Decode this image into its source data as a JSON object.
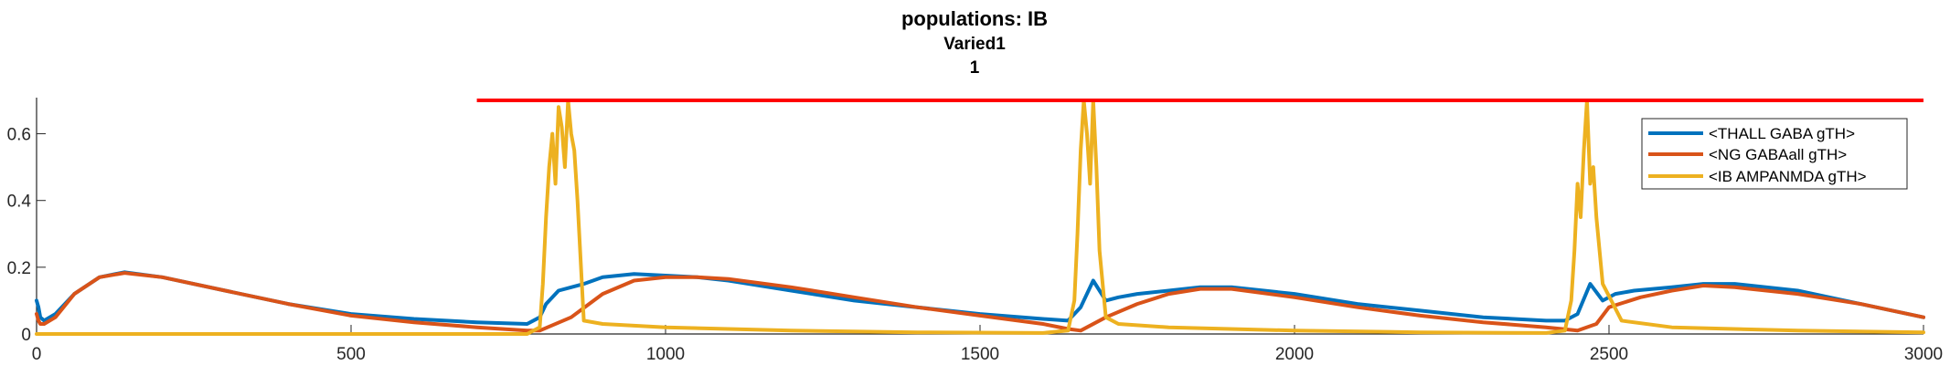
{
  "chart_data": {
    "type": "line",
    "title": "populations: IB",
    "subtitle": "Varied1",
    "subtitle2": "1",
    "xlim": [
      0,
      3000
    ],
    "ylim": [
      0,
      0.7
    ],
    "xticks": [
      0,
      500,
      1000,
      1500,
      2000,
      2500,
      3000
    ],
    "yticks": [
      0,
      0.2,
      0.4,
      0.6
    ],
    "ytick_labels": [
      "0",
      "0.2",
      "0.4",
      "0.6"
    ],
    "grid": false,
    "legend_position": "top-right",
    "threshold_line": {
      "y": 0.7,
      "x_start": 700,
      "x_end": 3000,
      "color": "#ff0000"
    },
    "series": [
      {
        "name": "<THALL GABA gTH>",
        "color": "#0072bd",
        "x": [
          0,
          3,
          6,
          12,
          30,
          60,
          100,
          140,
          200,
          300,
          400,
          500,
          600,
          700,
          780,
          800,
          810,
          830,
          850,
          870,
          900,
          950,
          1000,
          1050,
          1100,
          1200,
          1300,
          1400,
          1500,
          1600,
          1640,
          1660,
          1680,
          1700,
          1720,
          1750,
          1800,
          1850,
          1900,
          2000,
          2100,
          2200,
          2300,
          2400,
          2430,
          2450,
          2470,
          2490,
          2510,
          2540,
          2600,
          2650,
          2700,
          2800,
          2900,
          3000
        ],
        "values": [
          0.1,
          0.08,
          0.05,
          0.04,
          0.06,
          0.12,
          0.17,
          0.185,
          0.17,
          0.13,
          0.09,
          0.06,
          0.045,
          0.035,
          0.03,
          0.05,
          0.09,
          0.13,
          0.14,
          0.15,
          0.17,
          0.18,
          0.175,
          0.17,
          0.16,
          0.13,
          0.1,
          0.08,
          0.06,
          0.045,
          0.04,
          0.08,
          0.16,
          0.1,
          0.11,
          0.12,
          0.13,
          0.14,
          0.14,
          0.12,
          0.09,
          0.07,
          0.05,
          0.04,
          0.04,
          0.06,
          0.15,
          0.1,
          0.12,
          0.13,
          0.14,
          0.15,
          0.15,
          0.13,
          0.09,
          0.05
        ]
      },
      {
        "name": "<NG GABAall gTH>",
        "color": "#d95319",
        "x": [
          0,
          3,
          6,
          12,
          30,
          60,
          100,
          140,
          200,
          300,
          400,
          500,
          600,
          700,
          780,
          800,
          850,
          900,
          950,
          1000,
          1050,
          1100,
          1200,
          1300,
          1400,
          1500,
          1600,
          1640,
          1660,
          1700,
          1750,
          1800,
          1850,
          1900,
          2000,
          2100,
          2200,
          2300,
          2400,
          2450,
          2480,
          2500,
          2550,
          2600,
          2650,
          2700,
          2800,
          2900,
          3000
        ],
        "values": [
          0.06,
          0.04,
          0.03,
          0.03,
          0.05,
          0.12,
          0.17,
          0.183,
          0.17,
          0.13,
          0.09,
          0.055,
          0.035,
          0.02,
          0.01,
          0.01,
          0.05,
          0.12,
          0.16,
          0.17,
          0.17,
          0.165,
          0.14,
          0.11,
          0.08,
          0.055,
          0.03,
          0.015,
          0.01,
          0.05,
          0.09,
          0.12,
          0.135,
          0.135,
          0.11,
          0.08,
          0.055,
          0.035,
          0.02,
          0.01,
          0.03,
          0.08,
          0.11,
          0.13,
          0.145,
          0.14,
          0.12,
          0.09,
          0.05
        ]
      },
      {
        "name": "<IB AMPANMDA gTH>",
        "color": "#edb120",
        "x": [
          0,
          100,
          200,
          300,
          400,
          500,
          600,
          700,
          780,
          800,
          805,
          810,
          815,
          820,
          825,
          830,
          835,
          840,
          845,
          850,
          855,
          860,
          870,
          900,
          1000,
          1200,
          1400,
          1600,
          1640,
          1650,
          1655,
          1660,
          1665,
          1670,
          1675,
          1680,
          1685,
          1690,
          1700,
          1720,
          1800,
          2000,
          2200,
          2400,
          2430,
          2440,
          2445,
          2450,
          2455,
          2460,
          2465,
          2470,
          2475,
          2480,
          2490,
          2520,
          2600,
          2800,
          3000
        ],
        "values": [
          0.0,
          0.0,
          0.0,
          0.0,
          0.0,
          0.0,
          0.0,
          0.0,
          0.0,
          0.02,
          0.15,
          0.35,
          0.5,
          0.6,
          0.45,
          0.68,
          0.62,
          0.5,
          0.7,
          0.6,
          0.55,
          0.4,
          0.04,
          0.03,
          0.02,
          0.01,
          0.005,
          0.003,
          0.01,
          0.1,
          0.3,
          0.55,
          0.7,
          0.6,
          0.45,
          0.7,
          0.5,
          0.25,
          0.05,
          0.03,
          0.02,
          0.01,
          0.005,
          0.003,
          0.01,
          0.1,
          0.25,
          0.45,
          0.35,
          0.55,
          0.7,
          0.45,
          0.5,
          0.35,
          0.15,
          0.04,
          0.02,
          0.01,
          0.005
        ]
      }
    ]
  }
}
